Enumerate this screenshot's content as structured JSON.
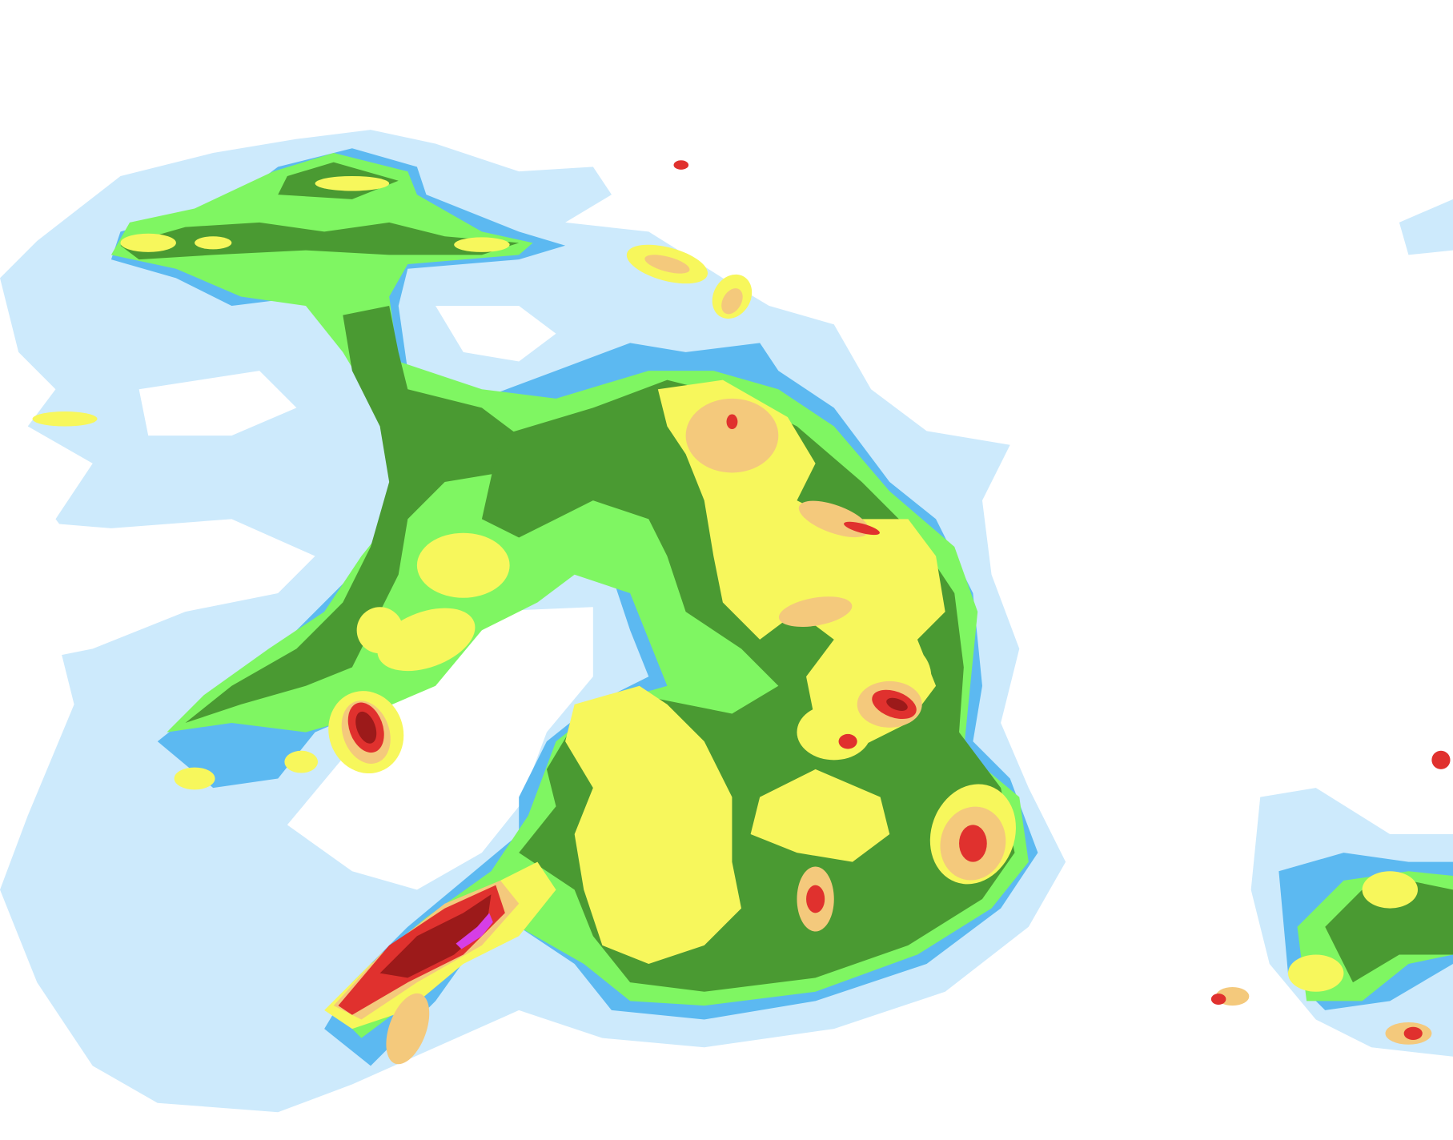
{
  "map": {
    "type": "precipitation-radar-composite",
    "background": "#ffffff",
    "intensity_palette": [
      {
        "level": "very-light",
        "color": "#cdeafc"
      },
      {
        "level": "light",
        "color": "#5cb9f1"
      },
      {
        "level": "light-moderate",
        "color": "#7ff662"
      },
      {
        "level": "moderate",
        "color": "#4a9a32"
      },
      {
        "level": "moderate-heavy",
        "color": "#f7f75c"
      },
      {
        "level": "heavy",
        "color": "#f4c97c"
      },
      {
        "level": "very-heavy",
        "color": "#e0312e"
      },
      {
        "level": "intense",
        "color": "#9c1a1a"
      },
      {
        "level": "extreme",
        "color": "#d63ee6"
      }
    ]
  }
}
